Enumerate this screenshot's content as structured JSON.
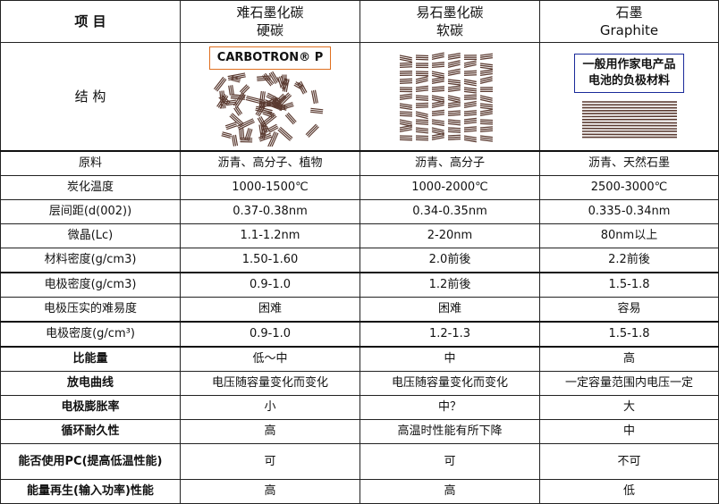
{
  "header": {
    "item": "项  目",
    "col1": {
      "line1": "难石墨化碳",
      "line2": "硬碳"
    },
    "col2": {
      "line1": "易石墨化碳",
      "line2": "软碳"
    },
    "col3": {
      "line1": "石墨",
      "line2": "Graphite"
    }
  },
  "structure": {
    "label": "结  构",
    "hard_carbon_tag": "CARBOTRON® P",
    "graphite_tag_line1": "一般用作家电产品",
    "graphite_tag_line2": "电池的负极材料",
    "border_colors": {
      "hard_carbon_tag": "#e07020",
      "graphite_tag": "#1a2a9a"
    },
    "line_color": "#5a3a30"
  },
  "rows": [
    {
      "label": "原料",
      "values": [
        "沥青、高分子、植物",
        "沥青、高分子",
        "沥青、天然石墨"
      ]
    },
    {
      "label": "炭化温度",
      "values": [
        "1000-1500℃",
        "1000-2000℃",
        "2500-3000℃"
      ]
    },
    {
      "label": "层间距(d(002))",
      "values": [
        "0.37-0.38nm",
        "0.34-0.35nm",
        "0.335-0.34nm"
      ]
    },
    {
      "label": "微晶(Lc)",
      "values": [
        "1.1-1.2nm",
        "2-20nm",
        "80nm以上"
      ]
    },
    {
      "label": "材料密度(g/cm3)",
      "values": [
        "1.50-1.60",
        "2.0前後",
        "2.2前後"
      ]
    },
    {
      "label": "电极密度(g/cm3)",
      "values": [
        "0.9-1.0",
        "1.2前後",
        "1.5-1.8"
      ]
    },
    {
      "label": "电极压实的难易度",
      "values": [
        "困难",
        "困难",
        "容易"
      ]
    },
    {
      "label": "电极密度(g/cm³)",
      "values": [
        "0.9-1.0",
        "1.2-1.3",
        "1.5-1.8"
      ]
    },
    {
      "label": "比能量",
      "values": [
        "低～中",
        "中",
        "高"
      ]
    },
    {
      "label": "放电曲线",
      "values": [
        "电压随容量变化而变化",
        "电压随容量变化而变化",
        "一定容量范围内电压一定"
      ]
    },
    {
      "label": "电极膨胀率",
      "values": [
        "小",
        "中？",
        "大"
      ]
    },
    {
      "label": "循环耐久性",
      "values": [
        "高",
        "高温时性能有所下降",
        "中"
      ]
    },
    {
      "label": "能否使用PC(提高低温性能)",
      "values": [
        "可",
        "可",
        "不可"
      ]
    },
    {
      "label": "能量再生(输入功率)性能",
      "values": [
        "高",
        "高",
        "低"
      ]
    }
  ]
}
